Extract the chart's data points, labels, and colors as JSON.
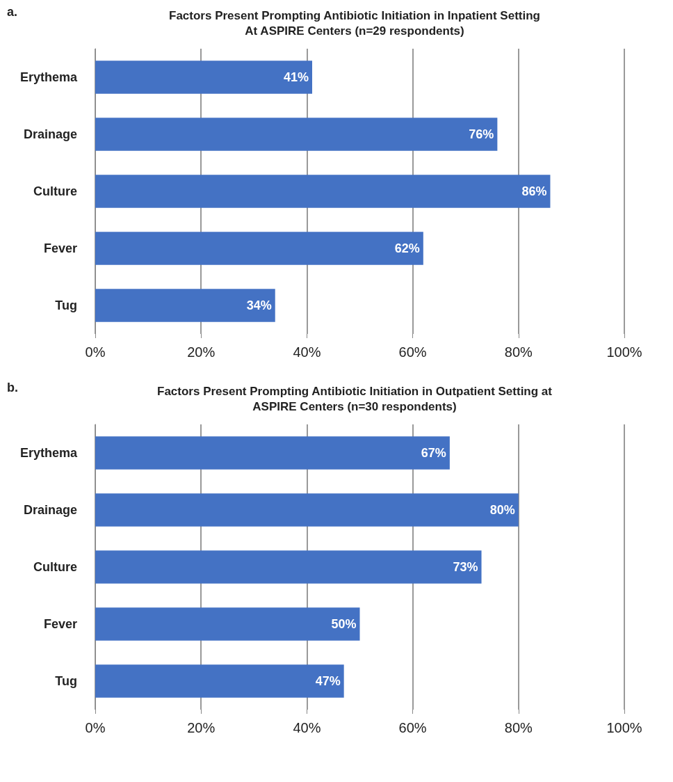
{
  "chart_data": [
    {
      "type": "bar",
      "orientation": "horizontal",
      "title": "Factors Present Prompting Antibiotic Initiation in Inpatient Setting\nAt ASPIRE Centers (n=29 respondents)",
      "annotations": [
        "a."
      ],
      "categories": [
        "Erythema",
        "Drainage",
        "Culture",
        "Fever",
        "Tug"
      ],
      "values": [
        41,
        76,
        86,
        62,
        34
      ],
      "value_labels": [
        "41%",
        "76%",
        "86%",
        "62%",
        "34%"
      ],
      "color": "#4472c4",
      "xlim": [
        0,
        100
      ],
      "xticks": [
        {
          "value": 0,
          "label": "0%"
        },
        {
          "value": 20,
          "label": "20%"
        },
        {
          "value": 40,
          "label": "40%"
        },
        {
          "value": 60,
          "label": "60%"
        },
        {
          "value": 80,
          "label": "80%"
        },
        {
          "value": 100,
          "label": "100%"
        }
      ],
      "grid": "x"
    },
    {
      "type": "bar",
      "orientation": "horizontal",
      "title": "Factors Present Prompting Antibiotic Initiation in Outpatient Setting at\nASPIRE Centers (n=30 respondents)",
      "annotations": [
        "b."
      ],
      "categories": [
        "Erythema",
        "Drainage",
        "Culture",
        "Fever",
        "Tug"
      ],
      "values": [
        67,
        80,
        73,
        50,
        47
      ],
      "value_labels": [
        "67%",
        "80%",
        "73%",
        "50%",
        "47%"
      ],
      "color": "#4472c4",
      "xlim": [
        0,
        100
      ],
      "xticks": [
        {
          "value": 0,
          "label": "0%"
        },
        {
          "value": 20,
          "label": "20%"
        },
        {
          "value": 40,
          "label": "40%"
        },
        {
          "value": 60,
          "label": "60%"
        },
        {
          "value": 80,
          "label": "80%"
        },
        {
          "value": 100,
          "label": "100%"
        }
      ],
      "grid": "x"
    }
  ]
}
